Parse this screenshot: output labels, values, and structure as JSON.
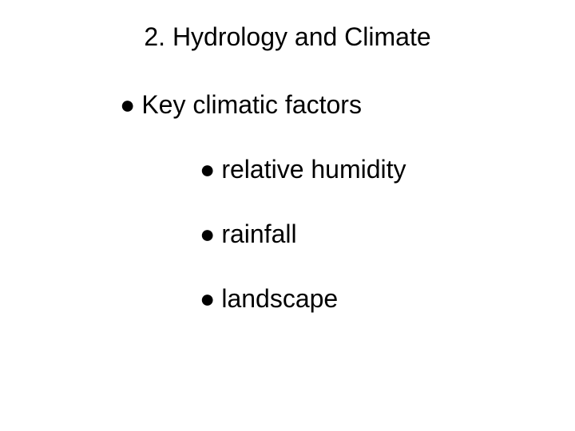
{
  "slide": {
    "title": "2. Hydrology and Climate",
    "level1": {
      "item": "Key climatic factors"
    },
    "level2": {
      "items": [
        "relative humidity",
        "rainfall",
        "landscape"
      ]
    },
    "bullet_char": "●",
    "colors": {
      "background": "#ffffff",
      "text": "#000000"
    },
    "typography": {
      "title_fontsize": 32,
      "body_fontsize": 32,
      "font_family": "Arial"
    }
  }
}
